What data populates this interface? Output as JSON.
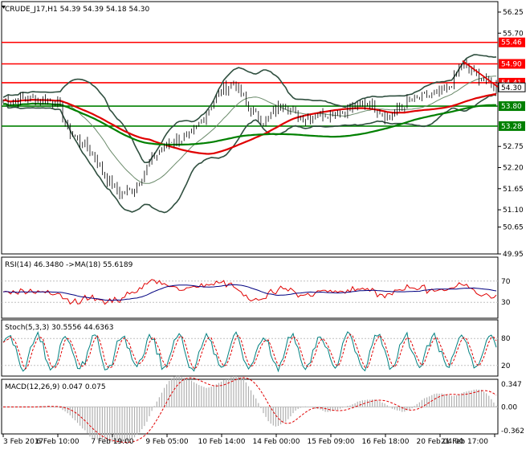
{
  "main": {
    "title": "CRUDE_J17,H1  54.39 54.39 54.18 54.30",
    "price_ticks": [
      "56.25",
      "55.70",
      "54.90",
      "54.41",
      "54.30",
      "53.80",
      "53.28",
      "52.75",
      "52.20",
      "51.65",
      "51.10",
      "50.65",
      "49.95"
    ],
    "price_tick_values": [
      56.25,
      55.7,
      54.9,
      54.41,
      54.3,
      53.8,
      53.28,
      52.75,
      52.2,
      51.65,
      51.1,
      50.65,
      49.95
    ],
    "levels": [
      {
        "label": "55.46",
        "value": 55.46,
        "color": "#ff0000"
      },
      {
        "label": "54.90",
        "value": 54.9,
        "color": "#ff0000"
      },
      {
        "label": "54.41",
        "value": 54.41,
        "color": "#ff0000"
      },
      {
        "label": "53.80",
        "value": 53.8,
        "color": "#008000"
      },
      {
        "label": "53.28",
        "value": 53.28,
        "color": "#008000"
      }
    ],
    "current_price": {
      "label": "54.30",
      "value": 54.3
    }
  },
  "rsi": {
    "title": "RSI(14) 46.3480  ->MA(18) 55.6189",
    "ticks": [
      "70",
      "30"
    ],
    "tick_values": [
      70,
      30
    ]
  },
  "stoch": {
    "title": "Stoch(5,3,3) 30.5556 44.6363",
    "ticks": [
      "80",
      "20"
    ],
    "tick_values": [
      80,
      20
    ]
  },
  "macd": {
    "title": "MACD(12,26,9) 0.047 0.075",
    "ticks": [
      "0.347",
      "0.00",
      "-0.362"
    ],
    "tick_values": [
      0.347,
      0.0,
      -0.362
    ]
  },
  "x_axis": {
    "labels": [
      "3 Feb 2017",
      "6 Feb 10:00",
      "7 Feb 19:00",
      "9 Feb 05:00",
      "10 Feb 14:00",
      "14 Feb 00:00",
      "15 Feb 09:00",
      "16 Feb 18:00",
      "20 Feb 04:00",
      "21 Feb 17:00"
    ]
  },
  "colors": {
    "candle": "#000000",
    "bb": "#2f4f3f",
    "ma_red": "#e00000",
    "ma_green": "#008000",
    "rsi": "#e00000",
    "rsi_ma": "#000080",
    "stoch_main": "#008080",
    "stoch_signal": "#e00000",
    "macd_hist": "#b0b0b0",
    "macd_signal": "#e00000"
  }
}
